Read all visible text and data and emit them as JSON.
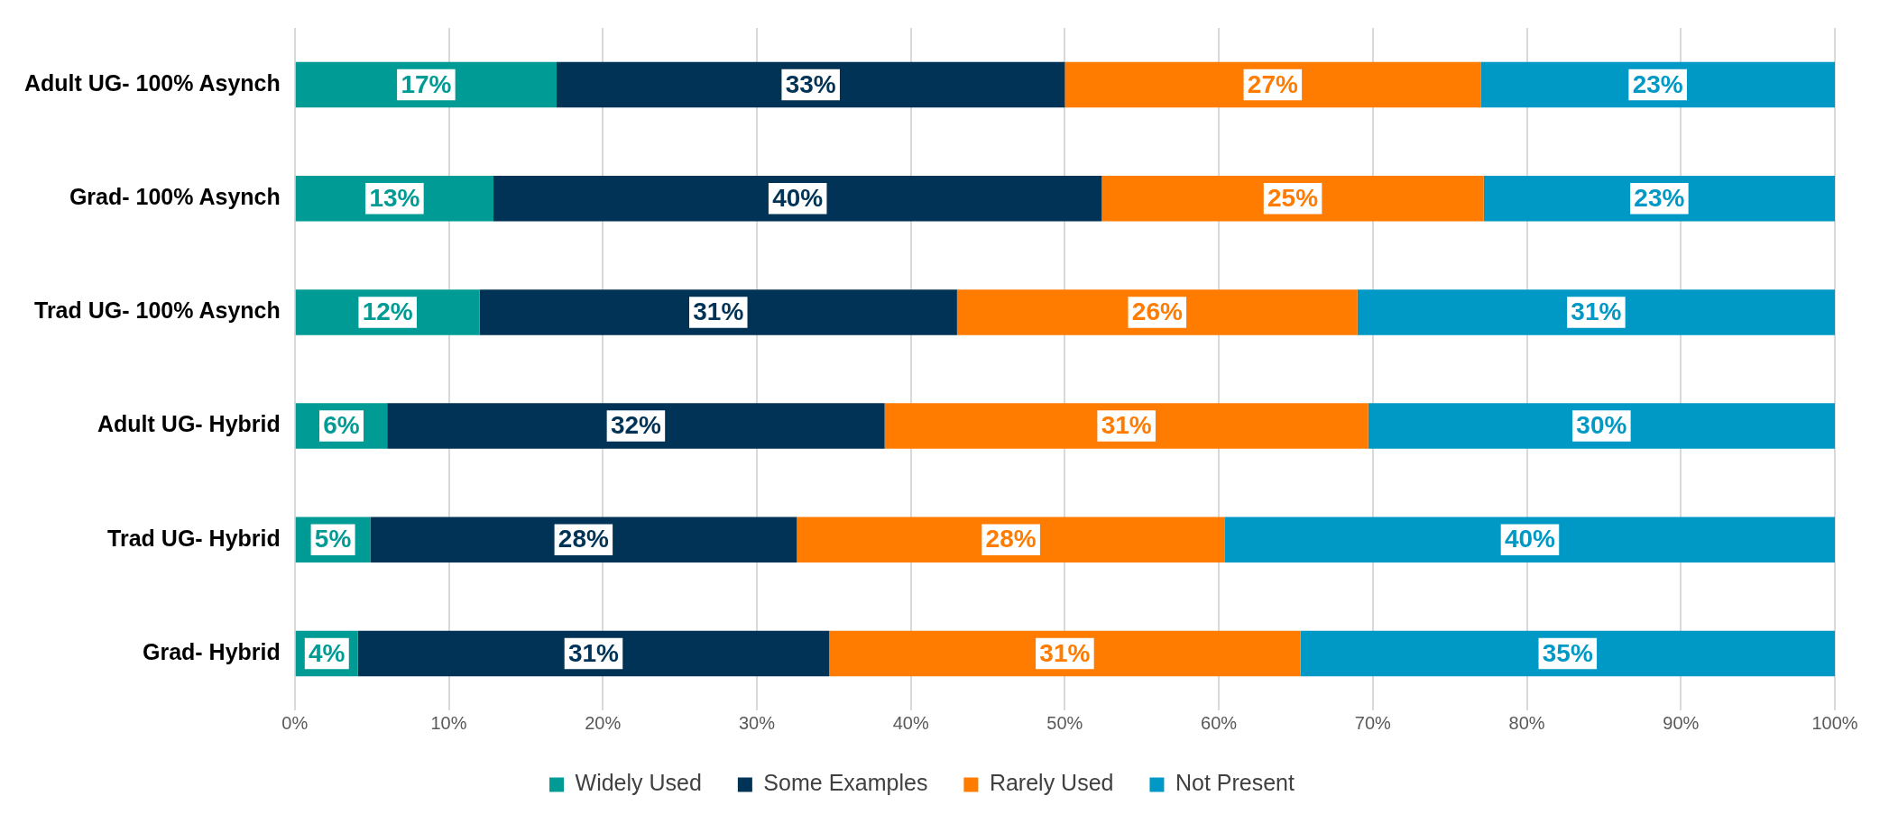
{
  "chart_data": {
    "type": "bar",
    "orientation": "horizontal",
    "stacked": true,
    "categories": [
      "Adult UG- 100% Asynch",
      "Grad- 100% Asynch",
      "Trad UG- 100% Asynch",
      "Adult UG- Hybrid",
      "Trad UG- Hybrid",
      "Grad- Hybrid"
    ],
    "series": [
      {
        "name": "Widely Used",
        "color": "#009b95",
        "values": [
          17,
          12.9,
          12,
          6,
          4.9,
          4.1
        ],
        "value_labels": [
          "17%",
          "13%",
          "12%",
          "6%",
          "5%",
          "4%"
        ]
      },
      {
        "name": "Some Examples",
        "color": "#003355",
        "values": [
          33,
          39.5,
          31,
          32.3,
          27.7,
          30.6
        ],
        "value_labels": [
          "33%",
          "40%",
          "31%",
          "32%",
          "28%",
          "31%"
        ]
      },
      {
        "name": "Rarely Used",
        "color": "#ff7c00",
        "values": [
          27,
          24.8,
          26,
          31.4,
          27.8,
          30.6
        ],
        "value_labels": [
          "27%",
          "25%",
          "26%",
          "31%",
          "28%",
          "31%"
        ]
      },
      {
        "name": "Not Present",
        "color": "#0099c6",
        "values": [
          23,
          22.8,
          31,
          30.3,
          39.6,
          34.7
        ],
        "value_labels": [
          "23%",
          "23%",
          "31%",
          "30%",
          "40%",
          "35%"
        ]
      }
    ],
    "xlim": [
      0,
      100
    ],
    "xticks": [
      {
        "value": 0,
        "label": "0%"
      },
      {
        "value": 10,
        "label": "10%"
      },
      {
        "value": 20,
        "label": "20%"
      },
      {
        "value": 30,
        "label": "30%"
      },
      {
        "value": 40,
        "label": "40%"
      },
      {
        "value": 50,
        "label": "50%"
      },
      {
        "value": 60,
        "label": "60%"
      },
      {
        "value": 70,
        "label": "70%"
      },
      {
        "value": 80,
        "label": "80%"
      },
      {
        "value": 90,
        "label": "90%"
      },
      {
        "value": 100,
        "label": "100%"
      }
    ],
    "grid": "x",
    "legend": "bottom"
  }
}
